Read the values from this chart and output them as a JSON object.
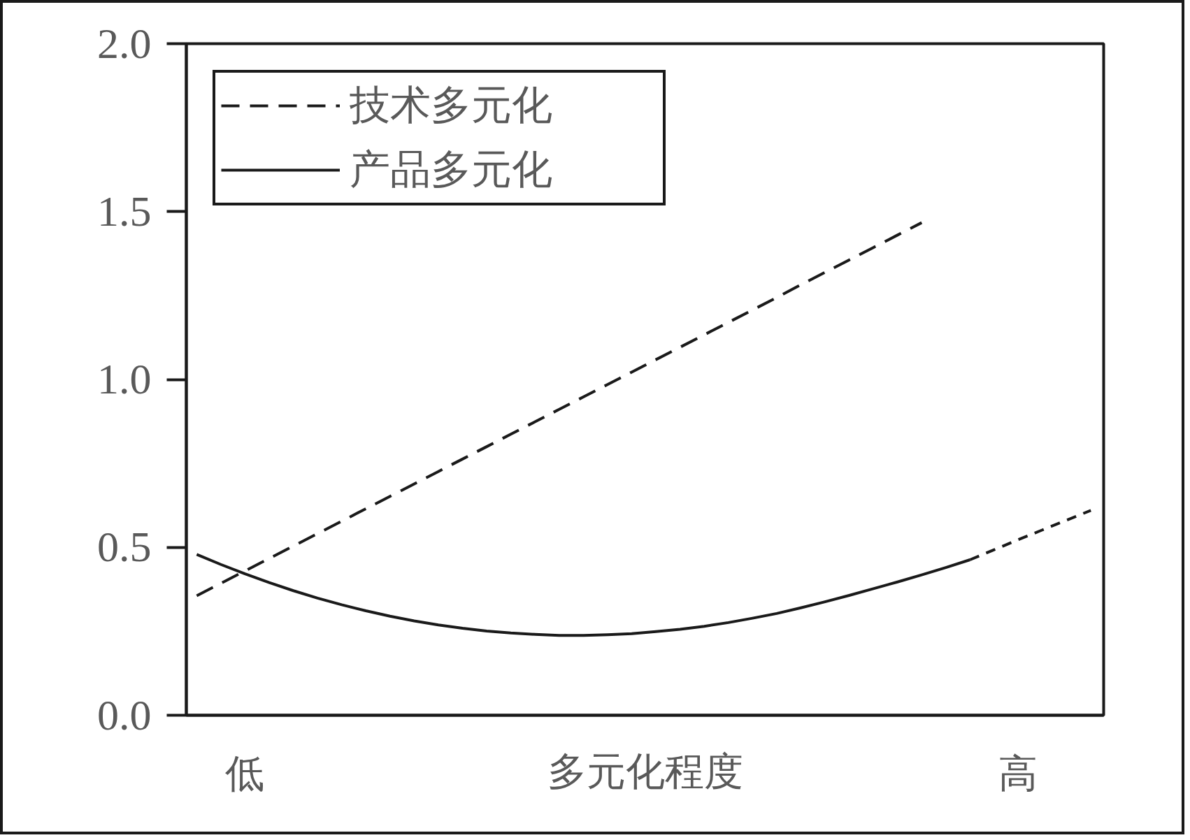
{
  "chart_data": {
    "type": "line",
    "xlabel": "多元化程度",
    "categories": [
      null,
      null,
      "低",
      null,
      null,
      null,
      null,
      null,
      null,
      null,
      null,
      null,
      null,
      null,
      null,
      null,
      null,
      null,
      null,
      null,
      null,
      null,
      null,
      null,
      null,
      null,
      null,
      null,
      null,
      null,
      null,
      null,
      null,
      null,
      "高",
      null,
      null,
      null
    ],
    "ylim": [
      0,
      2
    ],
    "yticks": [
      {
        "value": 0,
        "label": "0.0"
      },
      0.5,
      {
        "value": 1,
        "label": "1.0"
      },
      1.5,
      {
        "value": 2,
        "label": "2.0"
      }
    ],
    "grid": false,
    "legend": "top left",
    "series": [
      {
        "name": "技术多元化",
        "color": "#1a1a1a",
        "line_style": "dashed",
        "values": [
          0.356,
          0.393,
          0.43,
          0.467,
          0.504,
          0.541,
          0.578,
          0.615,
          0.652,
          0.689,
          0.726,
          0.763,
          0.8,
          0.837,
          0.874,
          0.911,
          0.948,
          0.985,
          1.022,
          1.059,
          1.096,
          1.133,
          1.17,
          1.207,
          1.244,
          1.282,
          1.319,
          1.356,
          1.393,
          1.43,
          1.467,
          null,
          null,
          null,
          null,
          null,
          null,
          null
        ]
      },
      {
        "name": "产品多元化",
        "color": "#1a1a1a",
        "line_style": "solid",
        "values": [
          0.479,
          0.449,
          0.421,
          0.395,
          0.371,
          0.349,
          0.329,
          0.311,
          0.295,
          0.281,
          0.269,
          0.259,
          0.251,
          0.245,
          0.241,
          0.238,
          0.238,
          0.24,
          0.243,
          0.249,
          0.256,
          0.265,
          0.276,
          0.289,
          0.303,
          0.32,
          0.338,
          0.357,
          0.377,
          0.397,
          0.418,
          0.44,
          0.463,
          null,
          null,
          null,
          null,
          null
        ]
      },
      {
        "color": "#1a1a1a",
        "line_style": "dotted",
        "values": [
          null,
          null,
          null,
          null,
          null,
          null,
          null,
          null,
          null,
          null,
          null,
          null,
          null,
          null,
          null,
          null,
          null,
          null,
          null,
          null,
          null,
          null,
          null,
          null,
          null,
          null,
          null,
          null,
          null,
          null,
          null,
          null,
          0.463,
          0.493,
          0.523,
          0.552,
          0.581,
          0.61
        ]
      }
    ]
  }
}
